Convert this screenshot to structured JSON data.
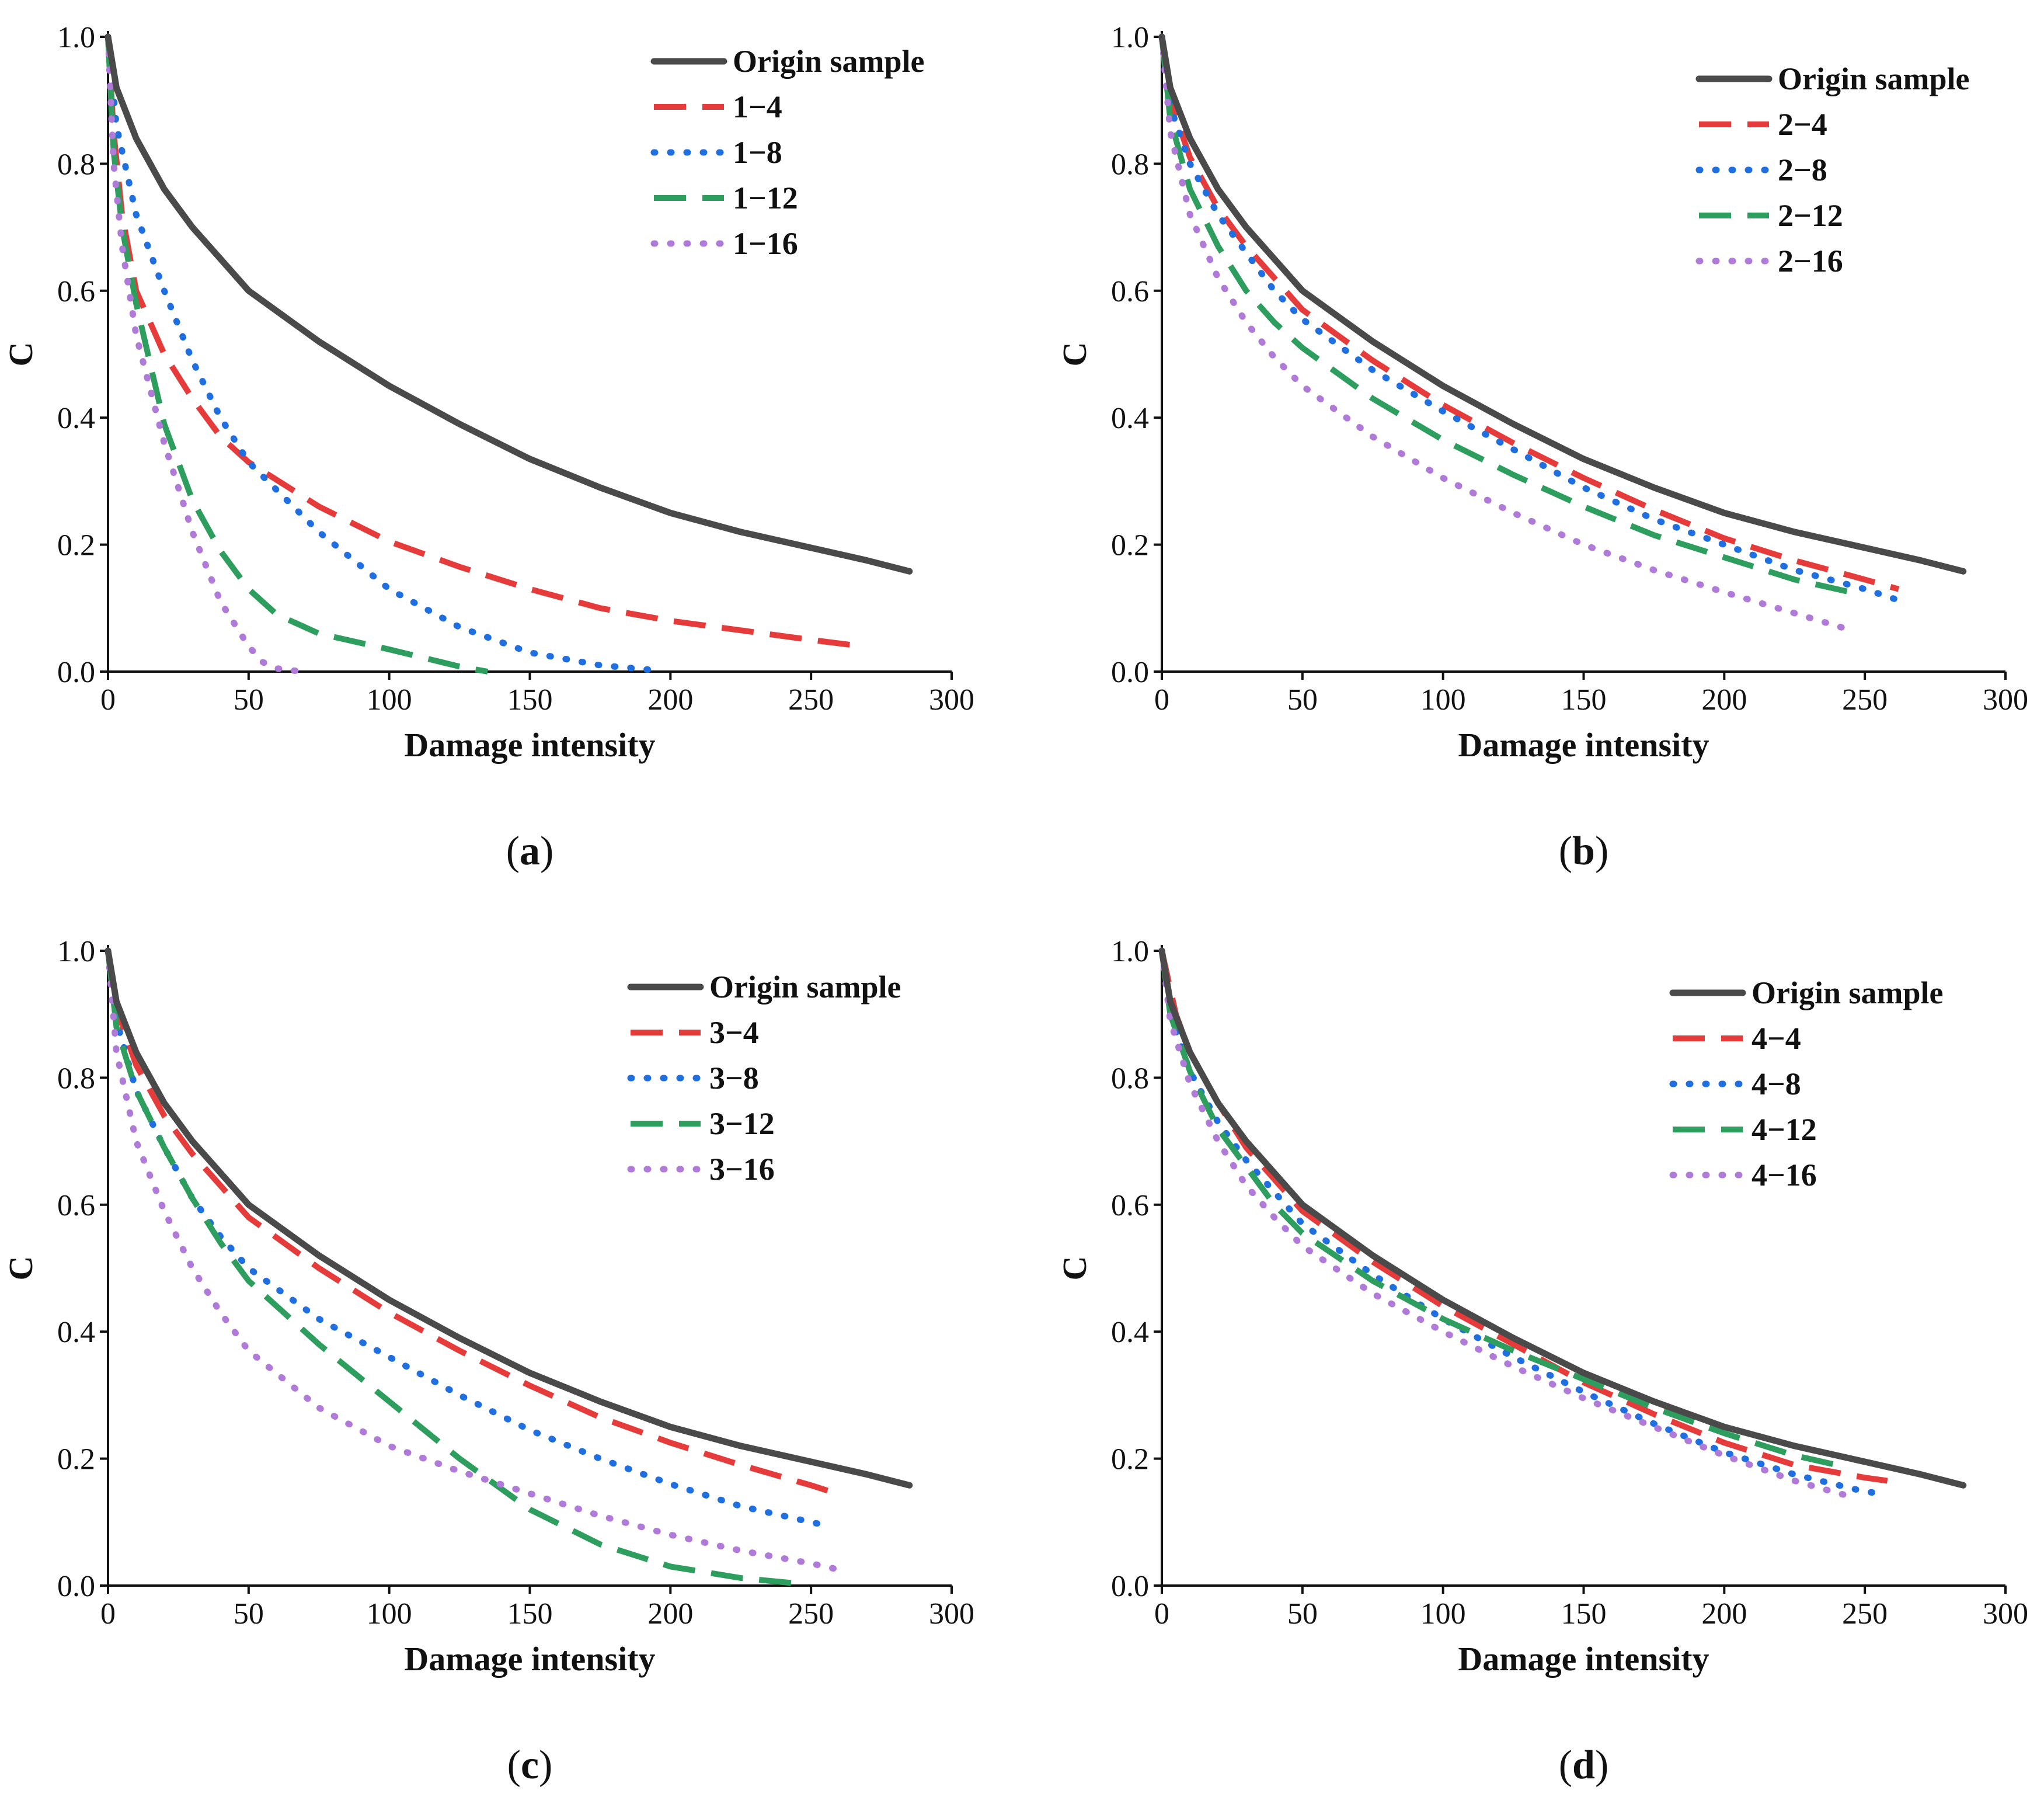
{
  "chart_data": [
    {
      "panel": "a",
      "caption": "(a)",
      "caption_letter": "a",
      "type": "line",
      "xlabel": "Damage intensity",
      "ylabel": "C",
      "xlim": [
        0,
        300
      ],
      "ylim": [
        0,
        1.0
      ],
      "xticks": [
        "0",
        "50",
        "100",
        "150",
        "200",
        "250",
        "300"
      ],
      "yticks": [
        "0.0",
        "0.2",
        "0.4",
        "0.6",
        "0.8",
        "1.0"
      ],
      "legend_position": "top-right",
      "series": [
        {
          "name": "Origin sample",
          "color": "#4a4a4a",
          "style": "solid",
          "x": [
            0,
            3,
            10,
            20,
            30,
            40,
            50,
            75,
            100,
            125,
            150,
            175,
            200,
            225,
            250,
            270,
            285
          ],
          "y": [
            1.0,
            0.92,
            0.84,
            0.76,
            0.7,
            0.65,
            0.6,
            0.52,
            0.45,
            0.39,
            0.335,
            0.29,
            0.25,
            0.22,
            0.195,
            0.175,
            0.158
          ]
        },
        {
          "name": "1−4",
          "color": "#e63b3b",
          "style": "dash",
          "x": [
            0,
            2,
            5,
            10,
            20,
            30,
            40,
            50,
            75,
            100,
            125,
            150,
            175,
            200,
            225,
            250,
            268
          ],
          "y": [
            1.0,
            0.85,
            0.72,
            0.6,
            0.5,
            0.43,
            0.37,
            0.33,
            0.26,
            0.205,
            0.165,
            0.13,
            0.1,
            0.08,
            0.065,
            0.05,
            0.04
          ]
        },
        {
          "name": "1−8",
          "color": "#1f6fe0",
          "style": "dot",
          "x": [
            0,
            3,
            10,
            20,
            30,
            40,
            50,
            75,
            100,
            125,
            150,
            175,
            195
          ],
          "y": [
            1.0,
            0.86,
            0.72,
            0.6,
            0.49,
            0.4,
            0.33,
            0.22,
            0.13,
            0.07,
            0.03,
            0.01,
            0.002
          ]
        },
        {
          "name": "1−12",
          "color": "#2e9e5e",
          "style": "dash",
          "x": [
            0,
            2,
            5,
            10,
            20,
            30,
            40,
            50,
            60,
            75,
            100,
            125,
            135
          ],
          "y": [
            1.0,
            0.82,
            0.7,
            0.58,
            0.39,
            0.27,
            0.19,
            0.13,
            0.09,
            0.06,
            0.035,
            0.008,
            0.0
          ]
        },
        {
          "name": "1−16",
          "color": "#b07ad8",
          "style": "dot",
          "x": [
            0,
            2,
            5,
            10,
            20,
            30,
            40,
            50,
            55,
            60,
            65,
            70
          ],
          "y": [
            1.0,
            0.8,
            0.67,
            0.53,
            0.36,
            0.22,
            0.11,
            0.04,
            0.015,
            0.005,
            0.002,
            0.0
          ]
        }
      ]
    },
    {
      "panel": "b",
      "caption": "(b)",
      "caption_letter": "b",
      "type": "line",
      "xlabel": "Damage intensity",
      "ylabel": "C",
      "xlim": [
        0,
        300
      ],
      "ylim": [
        0,
        1.0
      ],
      "xticks": [
        "0",
        "50",
        "100",
        "150",
        "200",
        "250",
        "300"
      ],
      "yticks": [
        "0.0",
        "0.2",
        "0.4",
        "0.6",
        "0.8",
        "1.0"
      ],
      "legend_position": "top-right",
      "series": [
        {
          "name": "Origin sample",
          "color": "#4a4a4a",
          "style": "solid",
          "x": [
            0,
            3,
            10,
            20,
            30,
            40,
            50,
            75,
            100,
            125,
            150,
            175,
            200,
            225,
            250,
            270,
            285
          ],
          "y": [
            1.0,
            0.92,
            0.84,
            0.76,
            0.7,
            0.65,
            0.6,
            0.52,
            0.45,
            0.39,
            0.335,
            0.29,
            0.25,
            0.22,
            0.195,
            0.175,
            0.158
          ]
        },
        {
          "name": "2−4",
          "color": "#e63b3b",
          "style": "dash",
          "x": [
            0,
            3,
            10,
            20,
            30,
            40,
            50,
            75,
            100,
            125,
            150,
            175,
            200,
            225,
            250,
            262
          ],
          "y": [
            1.0,
            0.9,
            0.81,
            0.73,
            0.67,
            0.62,
            0.57,
            0.49,
            0.42,
            0.36,
            0.305,
            0.255,
            0.21,
            0.175,
            0.145,
            0.13
          ]
        },
        {
          "name": "2−8",
          "color": "#1f6fe0",
          "style": "dot",
          "x": [
            0,
            3,
            10,
            20,
            30,
            40,
            50,
            75,
            100,
            125,
            150,
            175,
            200,
            225,
            250,
            265
          ],
          "y": [
            1.0,
            0.89,
            0.8,
            0.72,
            0.66,
            0.6,
            0.555,
            0.475,
            0.41,
            0.35,
            0.29,
            0.24,
            0.2,
            0.16,
            0.13,
            0.108
          ]
        },
        {
          "name": "2−12",
          "color": "#2e9e5e",
          "style": "dash",
          "x": [
            0,
            3,
            10,
            20,
            30,
            40,
            50,
            75,
            100,
            125,
            150,
            175,
            200,
            225,
            245
          ],
          "y": [
            1.0,
            0.87,
            0.76,
            0.67,
            0.6,
            0.55,
            0.51,
            0.43,
            0.365,
            0.31,
            0.26,
            0.215,
            0.18,
            0.145,
            0.125
          ]
        },
        {
          "name": "2−16",
          "color": "#b07ad8",
          "style": "dot",
          "x": [
            0,
            3,
            10,
            20,
            30,
            40,
            50,
            75,
            100,
            125,
            150,
            175,
            200,
            225,
            243
          ],
          "y": [
            1.0,
            0.85,
            0.72,
            0.62,
            0.55,
            0.495,
            0.45,
            0.37,
            0.305,
            0.25,
            0.2,
            0.16,
            0.125,
            0.092,
            0.068
          ]
        }
      ]
    },
    {
      "panel": "c",
      "caption": "(c)",
      "caption_letter": "c",
      "type": "line",
      "xlabel": "Damage intensity",
      "ylabel": "C",
      "xlim": [
        0,
        300
      ],
      "ylim": [
        0,
        1.0
      ],
      "xticks": [
        "0",
        "50",
        "100",
        "150",
        "200",
        "250",
        "300"
      ],
      "yticks": [
        "0.0",
        "0.2",
        "0.4",
        "0.6",
        "0.8",
        "1.0"
      ],
      "legend_position": "top-right",
      "series": [
        {
          "name": "Origin sample",
          "color": "#4a4a4a",
          "style": "solid",
          "x": [
            0,
            3,
            10,
            20,
            30,
            40,
            50,
            75,
            100,
            125,
            150,
            175,
            200,
            225,
            250,
            270,
            285
          ],
          "y": [
            1.0,
            0.92,
            0.84,
            0.76,
            0.7,
            0.65,
            0.6,
            0.52,
            0.45,
            0.39,
            0.335,
            0.29,
            0.25,
            0.22,
            0.195,
            0.175,
            0.158
          ]
        },
        {
          "name": "3−4",
          "color": "#e63b3b",
          "style": "dash",
          "x": [
            0,
            3,
            10,
            20,
            30,
            40,
            50,
            75,
            100,
            125,
            150,
            175,
            200,
            225,
            250,
            257
          ],
          "y": [
            1.0,
            0.91,
            0.82,
            0.74,
            0.68,
            0.63,
            0.58,
            0.5,
            0.43,
            0.37,
            0.315,
            0.265,
            0.225,
            0.19,
            0.158,
            0.148
          ]
        },
        {
          "name": "3−8",
          "color": "#1f6fe0",
          "style": "dot",
          "x": [
            0,
            3,
            10,
            20,
            30,
            40,
            50,
            75,
            100,
            125,
            150,
            175,
            200,
            225,
            250,
            255
          ],
          "y": [
            1.0,
            0.89,
            0.78,
            0.69,
            0.61,
            0.55,
            0.5,
            0.42,
            0.36,
            0.3,
            0.245,
            0.2,
            0.16,
            0.125,
            0.1,
            0.095
          ]
        },
        {
          "name": "3−12",
          "color": "#2e9e5e",
          "style": "dash",
          "x": [
            0,
            3,
            10,
            20,
            30,
            40,
            50,
            75,
            100,
            125,
            150,
            175,
            200,
            225,
            248
          ],
          "y": [
            1.0,
            0.88,
            0.78,
            0.69,
            0.61,
            0.54,
            0.48,
            0.38,
            0.29,
            0.2,
            0.12,
            0.065,
            0.03,
            0.012,
            0.002
          ]
        },
        {
          "name": "3−16",
          "color": "#b07ad8",
          "style": "dot",
          "x": [
            0,
            3,
            10,
            20,
            30,
            40,
            50,
            75,
            100,
            125,
            150,
            175,
            200,
            225,
            250,
            260
          ],
          "y": [
            1.0,
            0.84,
            0.7,
            0.59,
            0.5,
            0.43,
            0.37,
            0.28,
            0.22,
            0.18,
            0.145,
            0.11,
            0.08,
            0.055,
            0.035,
            0.025
          ]
        }
      ]
    },
    {
      "panel": "d",
      "caption": "(d)",
      "caption_letter": "d",
      "type": "line",
      "xlabel": "Damage intensity",
      "ylabel": "C",
      "xlim": [
        0,
        300
      ],
      "ylim": [
        0,
        1.0
      ],
      "xticks": [
        "0",
        "50",
        "100",
        "150",
        "200",
        "250",
        "300"
      ],
      "yticks": [
        "0.0",
        "0.2",
        "0.4",
        "0.6",
        "0.8",
        "1.0"
      ],
      "legend_position": "top-right",
      "series": [
        {
          "name": "Origin sample",
          "color": "#4a4a4a",
          "style": "solid",
          "x": [
            0,
            3,
            10,
            20,
            30,
            40,
            50,
            75,
            100,
            125,
            150,
            175,
            200,
            225,
            250,
            270,
            285
          ],
          "y": [
            1.0,
            0.92,
            0.84,
            0.76,
            0.7,
            0.65,
            0.6,
            0.52,
            0.45,
            0.39,
            0.335,
            0.29,
            0.25,
            0.22,
            0.195,
            0.175,
            0.158
          ]
        },
        {
          "name": "4−4",
          "color": "#e63b3b",
          "style": "dash",
          "x": [
            0,
            5,
            10,
            20,
            30,
            40,
            50,
            75,
            100,
            125,
            150,
            175,
            200,
            225,
            250,
            258
          ],
          "y": [
            1.0,
            0.9,
            0.84,
            0.76,
            0.69,
            0.64,
            0.59,
            0.51,
            0.44,
            0.38,
            0.32,
            0.27,
            0.225,
            0.19,
            0.17,
            0.165
          ]
        },
        {
          "name": "4−8",
          "color": "#1f6fe0",
          "style": "dot",
          "x": [
            0,
            3,
            10,
            20,
            30,
            40,
            50,
            75,
            100,
            125,
            150,
            175,
            200,
            225,
            250,
            256
          ],
          "y": [
            1.0,
            0.9,
            0.81,
            0.73,
            0.67,
            0.62,
            0.57,
            0.49,
            0.42,
            0.36,
            0.305,
            0.255,
            0.21,
            0.175,
            0.148,
            0.145
          ]
        },
        {
          "name": "4−12",
          "color": "#2e9e5e",
          "style": "dash",
          "x": [
            0,
            3,
            10,
            20,
            30,
            40,
            50,
            75,
            100,
            125,
            150,
            175,
            200,
            225,
            240
          ],
          "y": [
            1.0,
            0.9,
            0.81,
            0.72,
            0.66,
            0.6,
            0.555,
            0.48,
            0.42,
            0.37,
            0.325,
            0.28,
            0.24,
            0.205,
            0.19
          ]
        },
        {
          "name": "4−16",
          "color": "#b07ad8",
          "style": "dot",
          "x": [
            0,
            3,
            10,
            20,
            30,
            40,
            50,
            75,
            100,
            125,
            150,
            175,
            200,
            225,
            245
          ],
          "y": [
            1.0,
            0.89,
            0.79,
            0.7,
            0.63,
            0.58,
            0.535,
            0.46,
            0.4,
            0.345,
            0.295,
            0.25,
            0.205,
            0.165,
            0.14
          ]
        }
      ]
    }
  ]
}
